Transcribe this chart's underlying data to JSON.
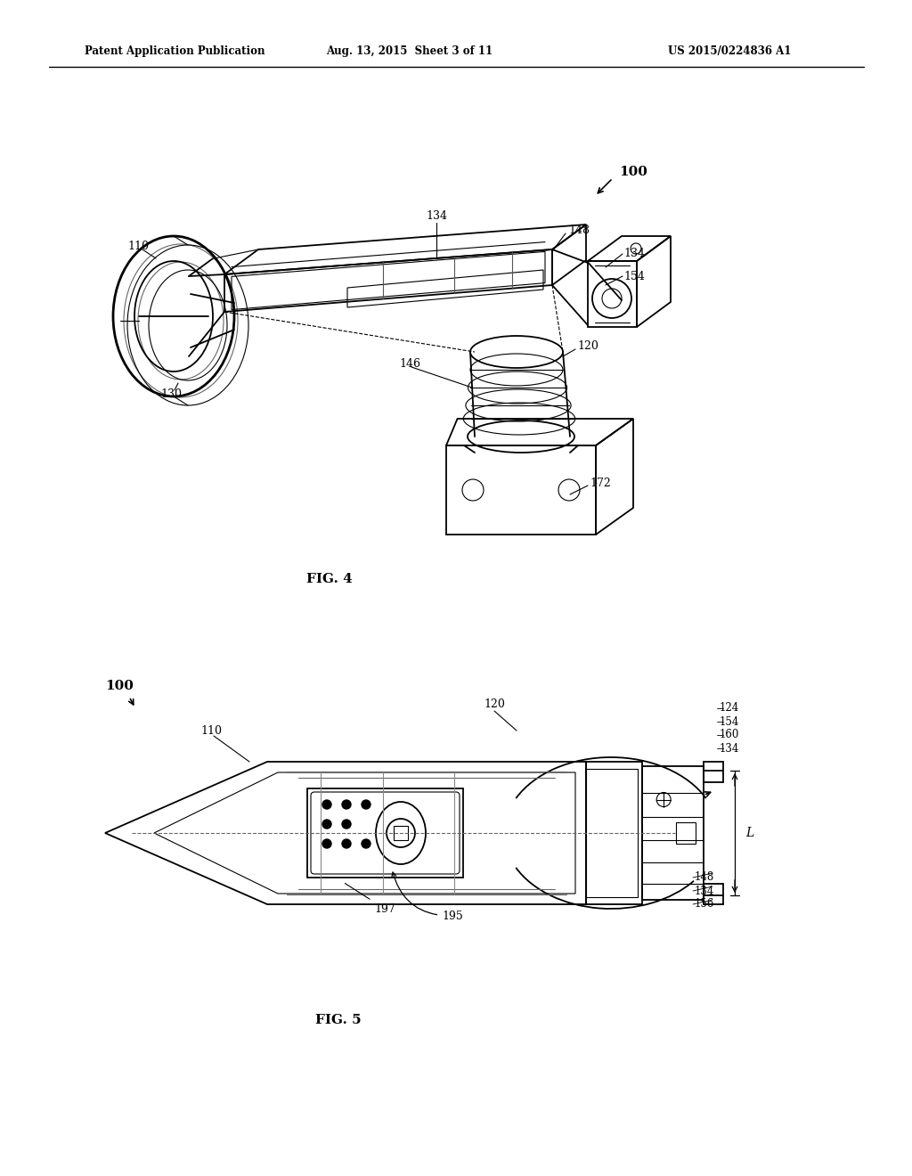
{
  "bg_color": "#ffffff",
  "line_color": "#000000",
  "header_left": "Patent Application Publication",
  "header_center": "Aug. 13, 2015  Sheet 3 of 11",
  "header_right": "US 2015/0224836 A1",
  "fig4_label": "FIG. 4",
  "fig5_label": "FIG. 5",
  "label_fontsize": 9.0,
  "header_fontsize": 8.5,
  "fig_label_fontsize": 11.0
}
